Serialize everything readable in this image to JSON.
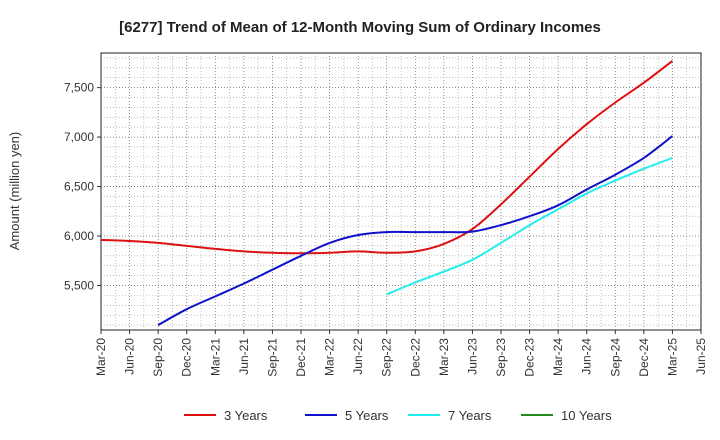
{
  "chart_data": {
    "type": "line",
    "title": "[6277]  Trend of Mean of 12-Month Moving Sum of Ordinary Incomes",
    "ylabel": "Amount (million yen)",
    "xlabel": "",
    "x_ticks": [
      "Mar-20",
      "Jun-20",
      "Sep-20",
      "Dec-20",
      "Mar-21",
      "Jun-21",
      "Sep-21",
      "Dec-21",
      "Mar-22",
      "Jun-22",
      "Sep-22",
      "Dec-22",
      "Mar-23",
      "Jun-23",
      "Sep-23",
      "Dec-23",
      "Mar-24",
      "Jun-24",
      "Sep-24",
      "Dec-24",
      "Mar-25",
      "Jun-25"
    ],
    "y_ticks": [
      5500,
      6000,
      6500,
      7000,
      7500
    ],
    "y_tick_labels": [
      "5,500",
      "6,000",
      "6,500",
      "7,000",
      "7,500"
    ],
    "ylim": [
      5050,
      7850
    ],
    "grid": true,
    "legend_position": "bottom",
    "series": [
      {
        "name": "3 Years",
        "color": "#dd1111",
        "values": [
          [
            "Mar-20",
            5960
          ],
          [
            "Jun-20",
            5950
          ],
          [
            "Sep-20",
            5930
          ],
          [
            "Dec-20",
            5900
          ],
          [
            "Mar-21",
            5870
          ],
          [
            "Jun-21",
            5845
          ],
          [
            "Sep-21",
            5830
          ],
          [
            "Dec-21",
            5825
          ],
          [
            "Mar-22",
            5830
          ],
          [
            "Jun-22",
            5845
          ],
          [
            "Sep-22",
            5830
          ],
          [
            "Dec-22",
            5845
          ],
          [
            "Mar-23",
            5920
          ],
          [
            "Jun-23",
            6070
          ],
          [
            "Sep-23",
            6320
          ],
          [
            "Dec-23",
            6600
          ],
          [
            "Mar-24",
            6880
          ],
          [
            "Jun-24",
            7130
          ],
          [
            "Sep-24",
            7350
          ],
          [
            "Dec-24",
            7550
          ],
          [
            "Mar-25",
            7770
          ]
        ]
      },
      {
        "name": "5 Years",
        "color": "#1111cc",
        "values": [
          [
            "Sep-20",
            5100
          ],
          [
            "Dec-20",
            5260
          ],
          [
            "Mar-21",
            5390
          ],
          [
            "Jun-21",
            5520
          ],
          [
            "Sep-21",
            5660
          ],
          [
            "Dec-21",
            5800
          ],
          [
            "Mar-22",
            5930
          ],
          [
            "Jun-22",
            6010
          ],
          [
            "Sep-22",
            6040
          ],
          [
            "Dec-22",
            6040
          ],
          [
            "Mar-23",
            6040
          ],
          [
            "Jun-23",
            6045
          ],
          [
            "Sep-23",
            6110
          ],
          [
            "Dec-23",
            6200
          ],
          [
            "Mar-24",
            6310
          ],
          [
            "Jun-24",
            6470
          ],
          [
            "Sep-24",
            6620
          ],
          [
            "Dec-24",
            6790
          ],
          [
            "Mar-25",
            7010
          ]
        ]
      },
      {
        "name": "7 Years",
        "color": "#22eeee",
        "values": [
          [
            "Sep-22",
            5410
          ],
          [
            "Dec-22",
            5530
          ],
          [
            "Mar-23",
            5640
          ],
          [
            "Jun-23",
            5760
          ],
          [
            "Sep-23",
            5930
          ],
          [
            "Dec-23",
            6110
          ],
          [
            "Mar-24",
            6270
          ],
          [
            "Jun-24",
            6430
          ],
          [
            "Sep-24",
            6560
          ],
          [
            "Dec-24",
            6680
          ],
          [
            "Mar-25",
            6790
          ]
        ]
      },
      {
        "name": "10 Years",
        "color": "#228822",
        "values": []
      }
    ]
  }
}
